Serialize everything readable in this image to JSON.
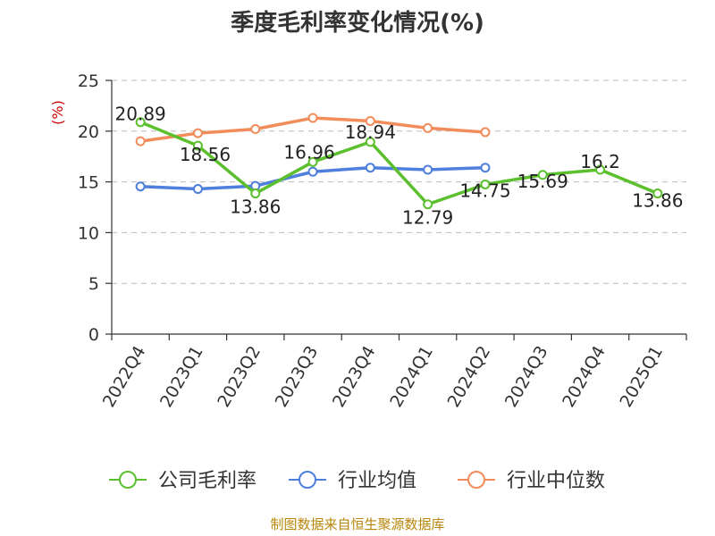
{
  "chart_data": {
    "type": "line",
    "title": "季度毛利率变化情况(%)",
    "unit_label": "(%)",
    "categories": [
      "2022Q4",
      "2023Q1",
      "2023Q2",
      "2023Q3",
      "2023Q4",
      "2024Q1",
      "2024Q2",
      "2024Q3",
      "2024Q4",
      "2025Q1"
    ],
    "ylim": [
      0,
      25
    ],
    "yticks": [
      0,
      5,
      10,
      15,
      20,
      25
    ],
    "grid": true,
    "legend_position": "bottom",
    "series": [
      {
        "name": "公司毛利率",
        "color": "#5cc02e",
        "values": [
          20.89,
          18.56,
          13.86,
          16.96,
          18.94,
          12.79,
          14.75,
          15.69,
          16.2,
          13.86
        ],
        "labels": [
          "20.89",
          "18.56",
          "13.86",
          "16.96",
          "18.94",
          "12.79",
          "14.75",
          "15.69",
          "16.2",
          "13.86"
        ]
      },
      {
        "name": "行业均值",
        "color": "#4f7fdc",
        "values": [
          14.55,
          14.3,
          14.6,
          16.0,
          16.4,
          16.2,
          16.4,
          null,
          null,
          null
        ]
      },
      {
        "name": "行业中位数",
        "color": "#f28c5a",
        "values": [
          19.0,
          19.8,
          20.2,
          21.3,
          21.0,
          20.3,
          19.9,
          null,
          null,
          null
        ]
      }
    ]
  },
  "source": "制图数据来自恒生聚源数据库"
}
